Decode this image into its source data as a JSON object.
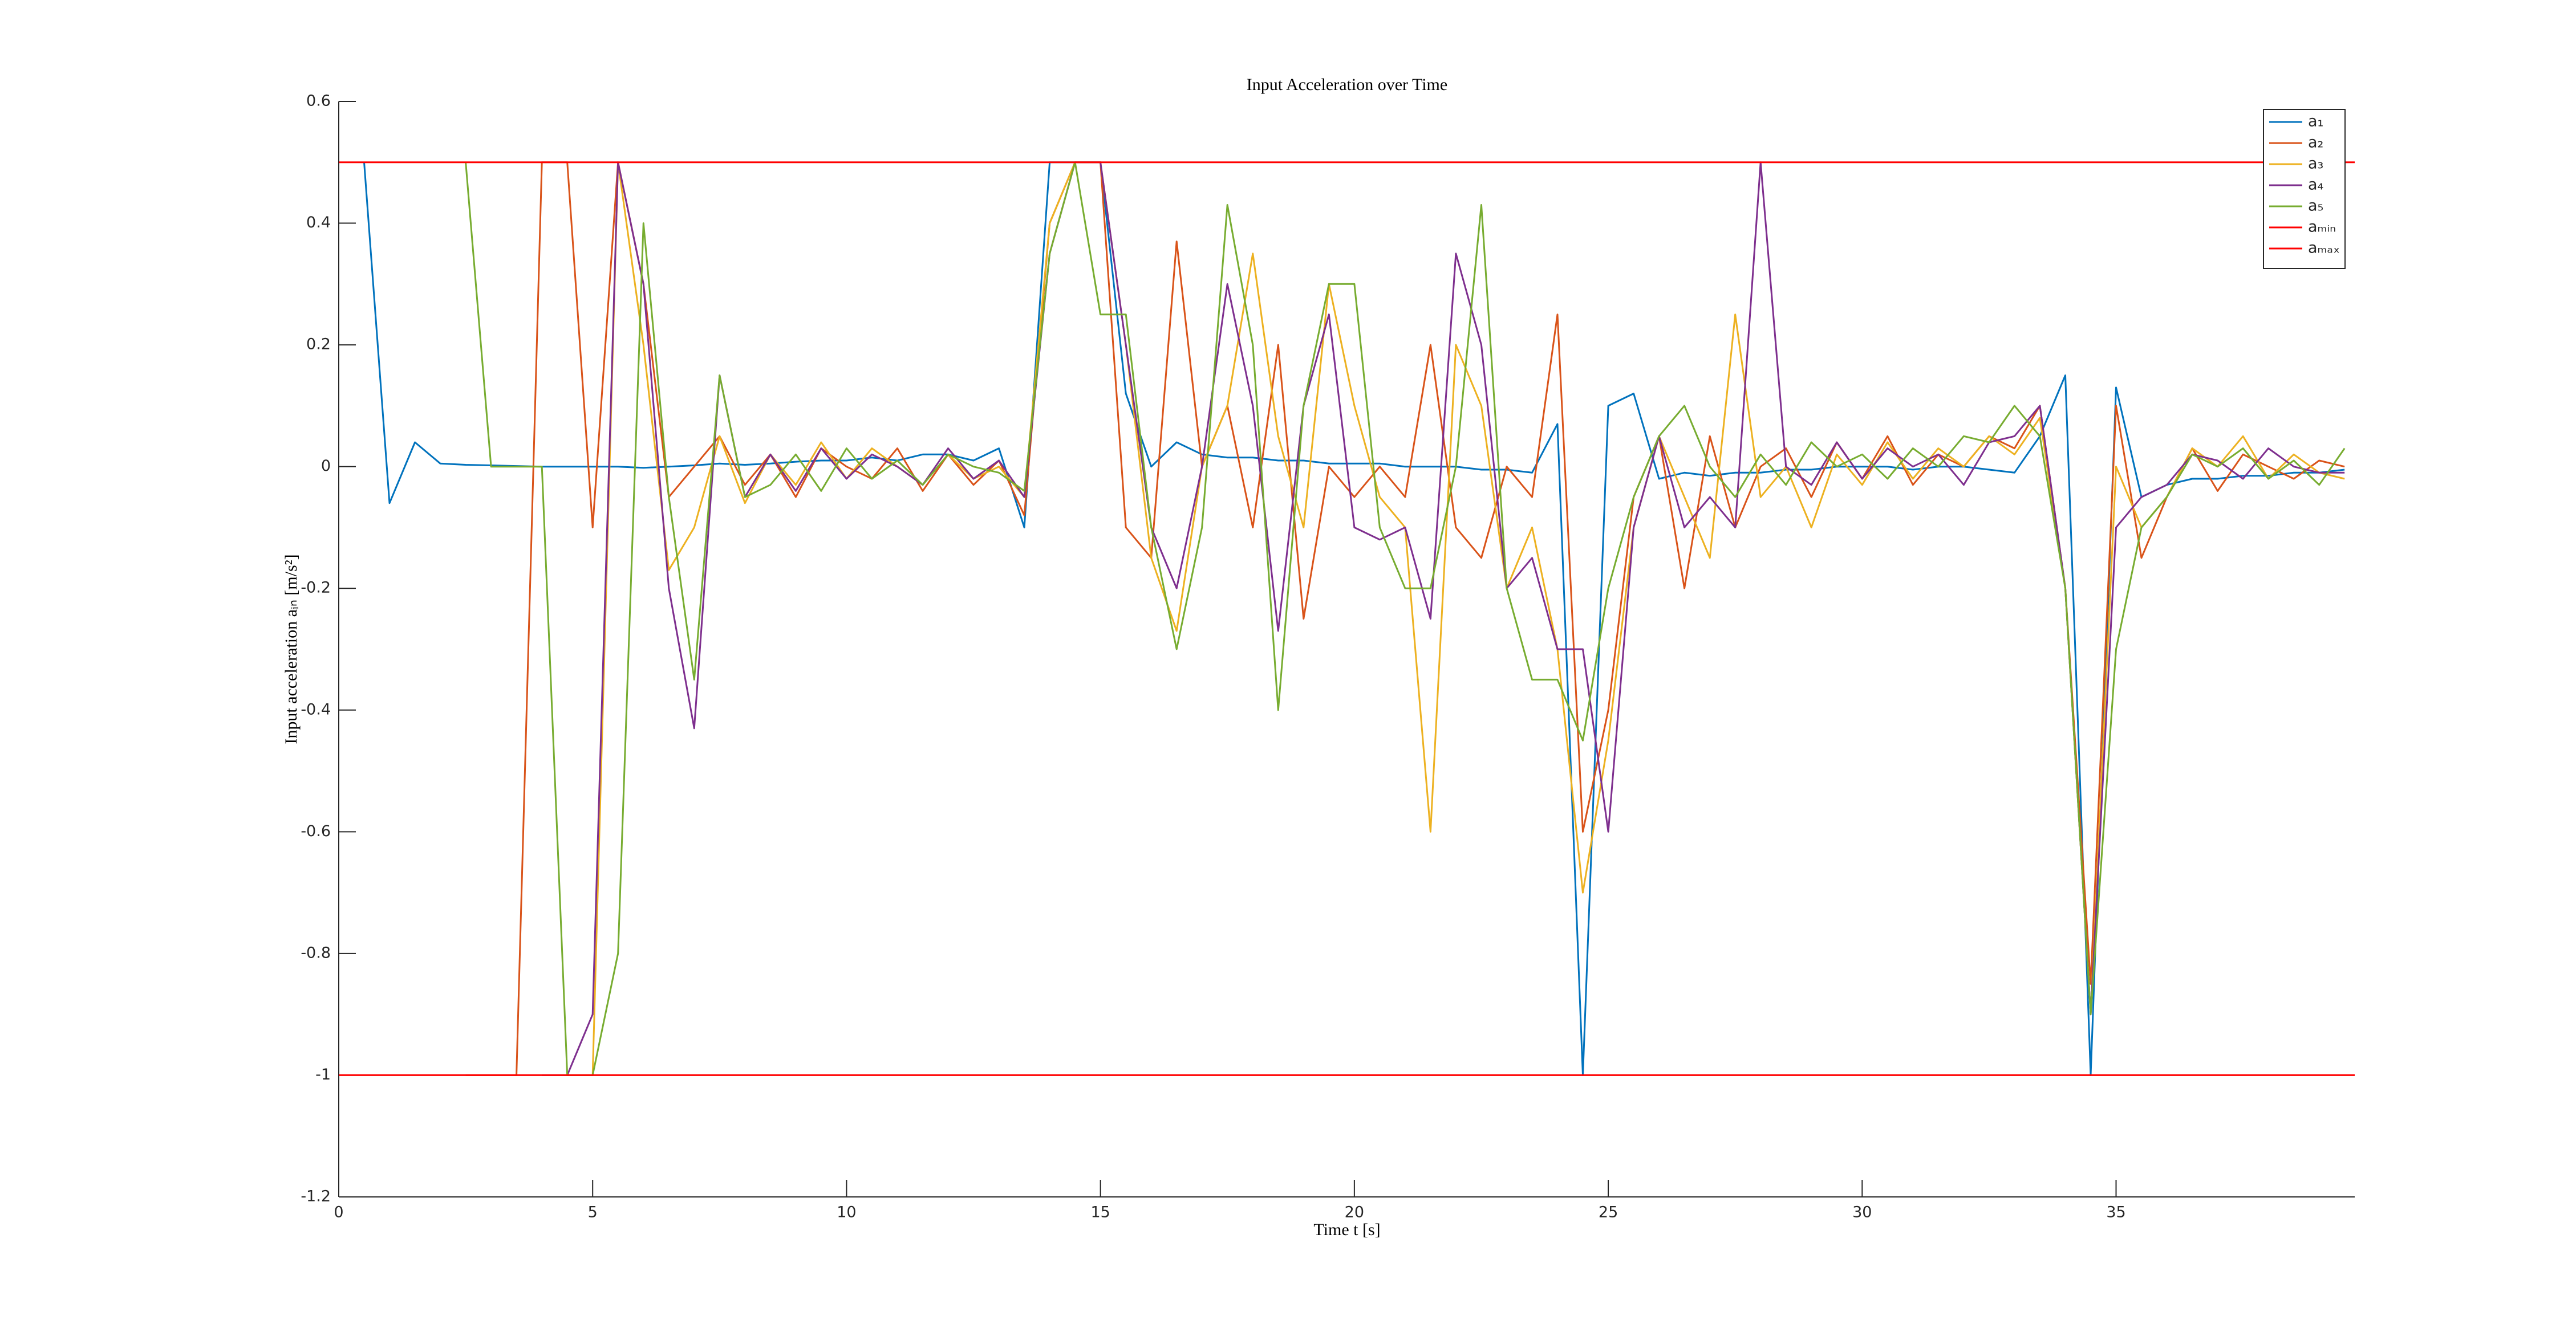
{
  "chart_data": {
    "type": "line",
    "title": "Input Acceleration over Time",
    "xlabel": "Time t [s]",
    "ylabel": "Input acceleration aᵢₙ [m/s²]",
    "xlim": [
      0,
      39.7
    ],
    "ylim": [
      -1.2,
      0.6
    ],
    "xticks": [
      0,
      5,
      10,
      15,
      20,
      25,
      30,
      35
    ],
    "yticks": [
      -1.2,
      -1,
      -0.8,
      -0.6,
      -0.4,
      -0.2,
      0,
      0.2,
      0.4,
      0.6
    ],
    "legend": "northeast",
    "x": [
      0,
      0.5,
      1,
      1.5,
      2,
      2.5,
      3,
      3.5,
      4,
      4.5,
      5,
      5.5,
      6,
      6.5,
      7,
      7.5,
      8,
      8.5,
      9,
      9.5,
      10,
      10.5,
      11,
      11.5,
      12,
      12.5,
      13,
      13.5,
      14,
      14.5,
      15,
      15.5,
      16,
      16.5,
      17,
      17.5,
      18,
      18.5,
      19,
      19.5,
      20,
      20.5,
      21,
      21.5,
      22,
      22.5,
      23,
      23.5,
      24,
      24.5,
      25,
      25.5,
      26,
      26.5,
      27,
      27.5,
      28,
      28.5,
      29,
      29.5,
      30,
      30.5,
      31,
      31.5,
      32,
      32.5,
      33,
      33.5,
      34,
      34.5,
      35,
      35.5,
      36,
      36.5,
      37,
      37.5,
      38,
      38.5,
      39,
      39.5
    ],
    "series": [
      {
        "name": "a₁",
        "color": "#0072BD",
        "values": [
          null,
          0.5,
          -0.06,
          0.04,
          0.005,
          0.003,
          0.002,
          0.001,
          0.0,
          0.0,
          0.0,
          0.0,
          -0.002,
          0.0,
          0.002,
          0.005,
          0.003,
          0.005,
          0.008,
          0.01,
          0.01,
          0.015,
          0.01,
          0.02,
          0.02,
          0.01,
          0.03,
          -0.1,
          0.5,
          0.5,
          0.5,
          0.12,
          0.0,
          0.04,
          0.02,
          0.015,
          0.015,
          0.01,
          0.01,
          0.005,
          0.005,
          0.005,
          0.0,
          0.0,
          0.0,
          -0.005,
          -0.005,
          -0.01,
          0.07,
          -1.0,
          0.1,
          0.12,
          -0.02,
          -0.01,
          -0.015,
          -0.01,
          -0.01,
          -0.005,
          -0.005,
          0.0,
          0.0,
          0.0,
          -0.005,
          0.0,
          0.0,
          -0.005,
          -0.01,
          0.05,
          0.15,
          -1.0,
          0.13,
          -0.05,
          -0.03,
          -0.02,
          -0.02,
          -0.015,
          -0.015,
          -0.01,
          -0.01,
          -0.005
        ]
      },
      {
        "name": "a₂",
        "color": "#D95319",
        "values": [
          null,
          null,
          null,
          null,
          null,
          -1.0,
          -1.0,
          -1.0,
          0.5,
          0.5,
          -0.1,
          0.5,
          0.3,
          -0.05,
          0.0,
          0.05,
          -0.03,
          0.02,
          -0.05,
          0.03,
          0.0,
          -0.02,
          0.03,
          -0.04,
          0.02,
          -0.03,
          0.01,
          -0.08,
          0.4,
          0.5,
          0.5,
          -0.1,
          -0.15,
          0.37,
          0.0,
          0.1,
          -0.1,
          0.2,
          -0.25,
          0.0,
          -0.05,
          0.0,
          -0.05,
          0.2,
          -0.1,
          -0.15,
          0.0,
          -0.05,
          0.25,
          -0.6,
          -0.4,
          -0.05,
          0.05,
          -0.2,
          0.05,
          -0.1,
          0.0,
          0.03,
          -0.05,
          0.04,
          -0.02,
          0.05,
          -0.03,
          0.02,
          0.0,
          0.05,
          0.03,
          0.1,
          -0.2,
          -0.85,
          0.1,
          -0.15,
          -0.05,
          0.03,
          -0.04,
          0.02,
          0.0,
          -0.02,
          0.01,
          0.0
        ]
      },
      {
        "name": "a₃",
        "color": "#EDB120",
        "values": [
          null,
          null,
          null,
          null,
          null,
          null,
          null,
          null,
          null,
          -1.0,
          -1.0,
          0.5,
          0.2,
          -0.17,
          -0.1,
          0.05,
          -0.06,
          0.02,
          -0.03,
          0.04,
          -0.02,
          0.03,
          0.0,
          -0.03,
          0.02,
          -0.02,
          0.0,
          -0.05,
          0.4,
          0.5,
          0.5,
          0.2,
          -0.15,
          -0.27,
          0.0,
          0.1,
          0.35,
          0.05,
          -0.1,
          0.3,
          0.1,
          -0.05,
          -0.1,
          -0.6,
          0.2,
          0.1,
          -0.2,
          -0.1,
          -0.3,
          -0.7,
          -0.45,
          -0.1,
          0.05,
          -0.05,
          -0.15,
          0.25,
          -0.05,
          0.0,
          -0.1,
          0.02,
          -0.03,
          0.04,
          -0.02,
          0.03,
          0.0,
          0.05,
          0.02,
          0.08,
          -0.2,
          -0.9,
          0.0,
          -0.1,
          -0.05,
          0.03,
          0.0,
          0.05,
          -0.02,
          0.02,
          -0.01,
          -0.02
        ]
      },
      {
        "name": "a₄",
        "color": "#7E2F8E",
        "values": [
          null,
          null,
          null,
          null,
          null,
          null,
          null,
          null,
          -1.0,
          -1.0,
          -0.9,
          0.5,
          0.3,
          -0.2,
          -0.43,
          0.15,
          -0.05,
          0.02,
          -0.04,
          0.03,
          -0.02,
          0.02,
          0.0,
          -0.03,
          0.03,
          -0.02,
          0.01,
          -0.05,
          0.35,
          0.5,
          0.5,
          0.2,
          -0.1,
          -0.2,
          0.0,
          0.3,
          0.1,
          -0.27,
          0.1,
          0.25,
          -0.1,
          -0.12,
          -0.1,
          -0.25,
          0.35,
          0.2,
          -0.2,
          -0.15,
          -0.3,
          -0.3,
          -0.6,
          -0.1,
          0.05,
          -0.1,
          -0.05,
          -0.1,
          0.5,
          0.0,
          -0.03,
          0.04,
          -0.02,
          0.03,
          0.0,
          0.02,
          -0.03,
          0.04,
          0.05,
          0.1,
          -0.2,
          -0.9,
          -0.1,
          -0.05,
          -0.03,
          0.02,
          0.01,
          -0.02,
          0.03,
          0.0,
          -0.01,
          -0.01
        ]
      },
      {
        "name": "a₅",
        "color": "#77AC30",
        "values": [
          null,
          null,
          null,
          null,
          null,
          0.5,
          0.0,
          0.0,
          0.0,
          -1.0,
          -1.0,
          -0.8,
          0.4,
          -0.05,
          -0.35,
          0.15,
          -0.05,
          -0.03,
          0.02,
          -0.04,
          0.03,
          -0.02,
          0.01,
          -0.03,
          0.02,
          0.0,
          -0.01,
          -0.04,
          0.35,
          0.5,
          0.25,
          0.25,
          -0.1,
          -0.3,
          -0.1,
          0.43,
          0.2,
          -0.4,
          0.1,
          0.3,
          0.3,
          -0.1,
          -0.2,
          -0.2,
          0.0,
          0.43,
          -0.2,
          -0.35,
          -0.35,
          -0.45,
          -0.2,
          -0.05,
          0.05,
          0.1,
          0.0,
          -0.05,
          0.02,
          -0.03,
          0.04,
          0.0,
          0.02,
          -0.02,
          0.03,
          0.0,
          0.05,
          0.04,
          0.1,
          0.05,
          -0.2,
          -0.9,
          -0.3,
          -0.1,
          -0.05,
          0.02,
          0.0,
          0.03,
          -0.02,
          0.01,
          -0.03,
          0.03
        ]
      },
      {
        "name": "aₘᵢₙ",
        "color": "#FF0000",
        "x": [
          0,
          39.7
        ],
        "values": [
          -1,
          -1
        ]
      },
      {
        "name": "aₘₐₓ",
        "color": "#FF0000",
        "x": [
          0,
          39.7
        ],
        "values": [
          0.5,
          0.5
        ]
      }
    ]
  }
}
